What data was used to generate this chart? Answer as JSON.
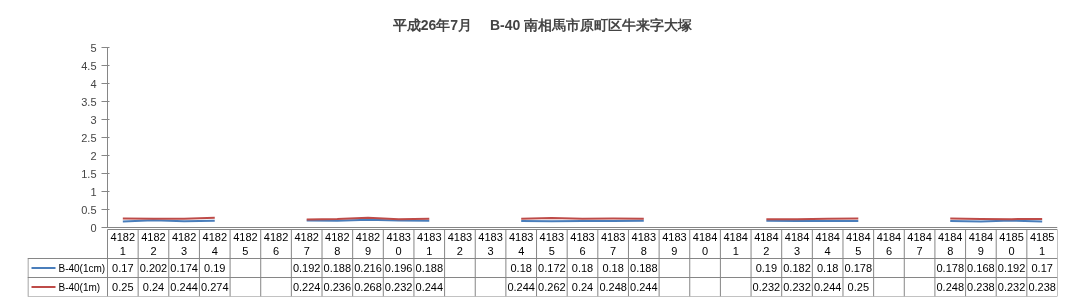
{
  "chart_data": {
    "type": "line",
    "title": "平成26年7月　 B-40 南相馬市原町区牛来字大塚",
    "categories": [
      "41821",
      "41822",
      "41823",
      "41824",
      "41825",
      "41826",
      "41827",
      "41828",
      "41829",
      "41830",
      "41831",
      "41832",
      "41833",
      "41834",
      "41835",
      "41836",
      "41837",
      "41838",
      "41839",
      "41840",
      "41841",
      "41842",
      "41843",
      "41844",
      "41845",
      "41846",
      "41847",
      "41848",
      "41849",
      "41850",
      "41851"
    ],
    "series": [
      {
        "name": "B-40(1cm)",
        "color": "#4a7ebb",
        "values": [
          0.17,
          0.202,
          0.174,
          0.19,
          null,
          null,
          0.192,
          0.188,
          0.216,
          0.196,
          0.188,
          null,
          null,
          0.18,
          0.172,
          0.18,
          0.18,
          0.188,
          null,
          null,
          null,
          0.19,
          0.182,
          0.18,
          0.178,
          null,
          null,
          0.178,
          0.168,
          0.192,
          0.17
        ]
      },
      {
        "name": "B-40(1m)",
        "color": "#be4b48",
        "values": [
          0.25,
          0.24,
          0.244,
          0.274,
          null,
          null,
          0.224,
          0.236,
          0.268,
          0.232,
          0.244,
          null,
          null,
          0.244,
          0.262,
          0.24,
          0.248,
          0.244,
          null,
          null,
          null,
          0.232,
          0.232,
          0.244,
          0.25,
          null,
          null,
          0.248,
          0.238,
          0.232,
          0.238
        ]
      }
    ],
    "ylim": [
      0,
      5
    ],
    "yticks": [
      0,
      0.5,
      1,
      1.5,
      2,
      2.5,
      3,
      3.5,
      4,
      4.5,
      5
    ],
    "data_labels": true,
    "legend": "bottom",
    "grid": false
  }
}
